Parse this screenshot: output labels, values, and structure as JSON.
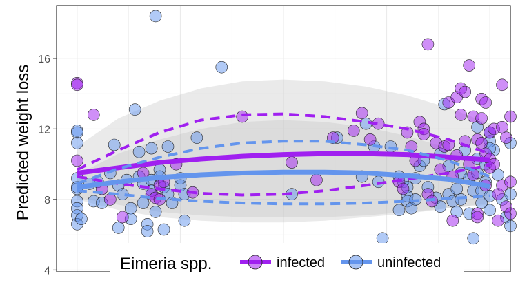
{
  "chart_data": {
    "type": "scatter",
    "title": "",
    "xlabel": "",
    "ylabel": "Predicted weight loss",
    "ylim": [
      3.9,
      19.0
    ],
    "xlim": [
      -0.05,
      1.05
    ],
    "yticks": [
      4,
      8,
      12,
      16
    ],
    "grid": true,
    "legend": {
      "title": "Eimeria spp.",
      "position": "bottom-inside",
      "entries": [
        "infected",
        "uninfected"
      ]
    },
    "colors": {
      "infected": "#a020f0",
      "uninfected": "#6495ed",
      "band": "#bebebe",
      "grid": "#ebebeb",
      "panel_border": "#333333"
    },
    "series": [
      {
        "name": "infected",
        "fit": {
          "x": [
            0,
            0.1,
            0.2,
            0.3,
            0.4,
            0.5,
            0.6,
            0.7,
            0.8,
            0.9,
            1.0
          ],
          "y": [
            9.5,
            9.8,
            10.1,
            10.3,
            10.45,
            10.55,
            10.6,
            10.6,
            10.55,
            10.4,
            10.25
          ]
        },
        "ci_upper": {
          "x": [
            0,
            0.1,
            0.2,
            0.3,
            0.4,
            0.5,
            0.6,
            0.7,
            0.8,
            0.9,
            1.0
          ],
          "y": [
            9.7,
            10.8,
            11.8,
            12.5,
            12.8,
            12.85,
            12.7,
            12.4,
            12.0,
            11.4,
            10.6
          ]
        },
        "ci_lower": {
          "x": [
            0,
            0.1,
            0.2,
            0.3,
            0.4,
            0.5,
            0.6,
            0.7,
            0.8,
            0.9,
            1.0
          ],
          "y": [
            9.3,
            8.9,
            8.6,
            8.35,
            8.25,
            8.3,
            8.5,
            8.8,
            9.15,
            9.5,
            9.95
          ]
        },
        "band_upper": [
          11.0,
          12.6,
          13.6,
          14.3,
          14.7,
          14.8,
          14.7,
          14.4,
          13.9,
          13.2,
          12.3
        ],
        "band_lower": [
          8.0,
          7.4,
          7.0,
          6.8,
          6.7,
          6.7,
          6.8,
          7.0,
          7.2,
          7.5,
          7.8
        ],
        "points": [
          {
            "x": 0.0,
            "y": 14.6
          },
          {
            "x": 0.0,
            "y": 14.5
          },
          {
            "x": 0.0,
            "y": 10.2
          },
          {
            "x": 0.04,
            "y": 12.8
          },
          {
            "x": 0.06,
            "y": 8.6
          },
          {
            "x": 0.08,
            "y": 8.0
          },
          {
            "x": 0.11,
            "y": 7.0
          },
          {
            "x": 0.16,
            "y": 9.5
          },
          {
            "x": 0.18,
            "y": 8.3
          },
          {
            "x": 0.19,
            "y": 8.1
          },
          {
            "x": 0.2,
            "y": 8.8
          },
          {
            "x": 0.21,
            "y": 9.0
          },
          {
            "x": 0.2,
            "y": 8.0
          },
          {
            "x": 0.24,
            "y": 10.0
          },
          {
            "x": 0.28,
            "y": 8.4
          },
          {
            "x": 0.4,
            "y": 12.7
          },
          {
            "x": 0.52,
            "y": 10.1
          },
          {
            "x": 0.58,
            "y": 9.1
          },
          {
            "x": 0.62,
            "y": 11.5
          },
          {
            "x": 0.67,
            "y": 11.9
          },
          {
            "x": 0.69,
            "y": 12.9
          },
          {
            "x": 0.71,
            "y": 11.4
          },
          {
            "x": 0.73,
            "y": 12.3
          },
          {
            "x": 0.78,
            "y": 9.0
          },
          {
            "x": 0.79,
            "y": 8.6
          },
          {
            "x": 0.8,
            "y": 11.8
          },
          {
            "x": 0.81,
            "y": 11.0
          },
          {
            "x": 0.82,
            "y": 10.2
          },
          {
            "x": 0.83,
            "y": 12.4
          },
          {
            "x": 0.84,
            "y": 12.0
          },
          {
            "x": 0.84,
            "y": 11.7
          },
          {
            "x": 0.85,
            "y": 16.8
          },
          {
            "x": 0.85,
            "y": 8.3
          },
          {
            "x": 0.86,
            "y": 7.9
          },
          {
            "x": 0.87,
            "y": 11.2
          },
          {
            "x": 0.88,
            "y": 9.7
          },
          {
            "x": 0.89,
            "y": 11.0
          },
          {
            "x": 0.9,
            "y": 13.5
          },
          {
            "x": 0.9,
            "y": 11.1
          },
          {
            "x": 0.91,
            "y": 6.8
          },
          {
            "x": 0.91,
            "y": 9.3
          },
          {
            "x": 0.92,
            "y": 10.5
          },
          {
            "x": 0.92,
            "y": 13.8
          },
          {
            "x": 0.93,
            "y": 14.3
          },
          {
            "x": 0.93,
            "y": 12.8
          },
          {
            "x": 0.94,
            "y": 14.1
          },
          {
            "x": 0.94,
            "y": 11.3
          },
          {
            "x": 0.95,
            "y": 15.6
          },
          {
            "x": 0.95,
            "y": 10.0
          },
          {
            "x": 0.96,
            "y": 12.7
          },
          {
            "x": 0.96,
            "y": 9.4
          },
          {
            "x": 0.97,
            "y": 11.4
          },
          {
            "x": 0.97,
            "y": 7.2
          },
          {
            "x": 0.97,
            "y": 7.0
          },
          {
            "x": 0.98,
            "y": 11.2
          },
          {
            "x": 0.98,
            "y": 12.6
          },
          {
            "x": 0.98,
            "y": 13.7
          },
          {
            "x": 0.99,
            "y": 13.5
          },
          {
            "x": 0.99,
            "y": 10.6
          },
          {
            "x": 0.99,
            "y": 8.8
          },
          {
            "x": 1.0,
            "y": 11.8
          },
          {
            "x": 1.0,
            "y": 10.3
          },
          {
            "x": 1.0,
            "y": 9.8
          },
          {
            "x": 1.01,
            "y": 12.0
          },
          {
            "x": 1.01,
            "y": 10.0
          },
          {
            "x": 1.02,
            "y": 8.3
          },
          {
            "x": 1.02,
            "y": 6.8
          },
          {
            "x": 1.03,
            "y": 14.5
          },
          {
            "x": 1.03,
            "y": 12.1
          },
          {
            "x": 1.03,
            "y": 8.8
          },
          {
            "x": 1.04,
            "y": 7.6
          },
          {
            "x": 1.04,
            "y": 11.5
          },
          {
            "x": 1.05,
            "y": 12.7
          },
          {
            "x": 1.05,
            "y": 9.0
          },
          {
            "x": 1.05,
            "y": 7.2
          }
        ]
      },
      {
        "name": "uninfected",
        "fit": {
          "x": [
            0,
            0.1,
            0.2,
            0.3,
            0.4,
            0.5,
            0.6,
            0.7,
            0.8,
            0.9,
            1.0
          ],
          "y": [
            8.7,
            9.0,
            9.25,
            9.4,
            9.5,
            9.55,
            9.55,
            9.5,
            9.35,
            9.15,
            8.75
          ]
        },
        "ci_upper": {
          "x": [
            0,
            0.1,
            0.2,
            0.3,
            0.4,
            0.5,
            0.6,
            0.7,
            0.8,
            0.9,
            1.0
          ],
          "y": [
            8.9,
            9.75,
            10.4,
            10.9,
            11.2,
            11.3,
            11.3,
            11.1,
            10.8,
            10.2,
            9.3
          ]
        },
        "ci_lower": {
          "x": [
            0,
            0.1,
            0.2,
            0.3,
            0.4,
            0.5,
            0.6,
            0.7,
            0.8,
            0.9,
            1.0
          ],
          "y": [
            8.5,
            8.3,
            8.05,
            7.9,
            7.8,
            7.75,
            7.75,
            7.8,
            7.9,
            8.05,
            8.2
          ]
        },
        "band_upper": [
          9.4,
          10.6,
          11.4,
          12.0,
          12.4,
          12.5,
          12.4,
          12.1,
          11.6,
          10.9,
          10.0
        ],
        "band_lower": [
          8.1,
          7.7,
          7.3,
          7.1,
          7.0,
          7.0,
          7.0,
          7.1,
          7.3,
          7.5,
          7.7
        ],
        "points": [
          {
            "x": 0.0,
            "y": 11.9
          },
          {
            "x": 0.0,
            "y": 11.8
          },
          {
            "x": 0.0,
            "y": 11.2
          },
          {
            "x": 0.0,
            "y": 8.6
          },
          {
            "x": 0.0,
            "y": 7.9
          },
          {
            "x": 0.0,
            "y": 7.5
          },
          {
            "x": 0.0,
            "y": 7.1
          },
          {
            "x": 0.0,
            "y": 6.6
          },
          {
            "x": 0.0,
            "y": 8.7
          },
          {
            "x": 0.0,
            "y": 9.2
          },
          {
            "x": 0.01,
            "y": 6.9
          },
          {
            "x": 0.03,
            "y": 8.9
          },
          {
            "x": 0.04,
            "y": 7.9
          },
          {
            "x": 0.05,
            "y": 9.0
          },
          {
            "x": 0.06,
            "y": 7.8
          },
          {
            "x": 0.08,
            "y": 9.5
          },
          {
            "x": 0.09,
            "y": 11.1
          },
          {
            "x": 0.1,
            "y": 8.8
          },
          {
            "x": 0.1,
            "y": 6.4
          },
          {
            "x": 0.11,
            "y": 8.3
          },
          {
            "x": 0.12,
            "y": 9.1
          },
          {
            "x": 0.13,
            "y": 7.5
          },
          {
            "x": 0.13,
            "y": 6.9
          },
          {
            "x": 0.14,
            "y": 13.1
          },
          {
            "x": 0.15,
            "y": 10.7
          },
          {
            "x": 0.15,
            "y": 9.3
          },
          {
            "x": 0.16,
            "y": 7.8
          },
          {
            "x": 0.16,
            "y": 8.9
          },
          {
            "x": 0.17,
            "y": 6.6
          },
          {
            "x": 0.17,
            "y": 6.2
          },
          {
            "x": 0.18,
            "y": 10.9
          },
          {
            "x": 0.18,
            "y": 9.1
          },
          {
            "x": 0.18,
            "y": 8.5
          },
          {
            "x": 0.19,
            "y": 7.3
          },
          {
            "x": 0.19,
            "y": 18.4
          },
          {
            "x": 0.2,
            "y": 9.7
          },
          {
            "x": 0.2,
            "y": 9.3
          },
          {
            "x": 0.21,
            "y": 8.7
          },
          {
            "x": 0.21,
            "y": 6.3
          },
          {
            "x": 0.22,
            "y": 8.3
          },
          {
            "x": 0.22,
            "y": 11.0
          },
          {
            "x": 0.23,
            "y": 7.8
          },
          {
            "x": 0.25,
            "y": 8.8
          },
          {
            "x": 0.25,
            "y": 9.2
          },
          {
            "x": 0.26,
            "y": 6.8
          },
          {
            "x": 0.26,
            "y": 8.3
          },
          {
            "x": 0.29,
            "y": 11.5
          },
          {
            "x": 0.35,
            "y": 15.5
          },
          {
            "x": 0.52,
            "y": 8.3
          },
          {
            "x": 0.63,
            "y": 11.5
          },
          {
            "x": 0.69,
            "y": 9.3
          },
          {
            "x": 0.7,
            "y": 12.3
          },
          {
            "x": 0.72,
            "y": 11.0
          },
          {
            "x": 0.73,
            "y": 9.0
          },
          {
            "x": 0.74,
            "y": 5.8
          },
          {
            "x": 0.76,
            "y": 11.0
          },
          {
            "x": 0.78,
            "y": 9.3
          },
          {
            "x": 0.78,
            "y": 7.4
          },
          {
            "x": 0.79,
            "y": 9.0
          },
          {
            "x": 0.8,
            "y": 8.2
          },
          {
            "x": 0.8,
            "y": 8.7
          },
          {
            "x": 0.8,
            "y": 7.9
          },
          {
            "x": 0.81,
            "y": 7.5
          },
          {
            "x": 0.82,
            "y": 9.2
          },
          {
            "x": 0.82,
            "y": 8.0
          },
          {
            "x": 0.83,
            "y": 9.9
          },
          {
            "x": 0.84,
            "y": 10.2
          },
          {
            "x": 0.85,
            "y": 8.7
          },
          {
            "x": 0.87,
            "y": 8.1
          },
          {
            "x": 0.88,
            "y": 10.6
          },
          {
            "x": 0.88,
            "y": 7.6
          },
          {
            "x": 0.89,
            "y": 13.4
          },
          {
            "x": 0.9,
            "y": 9.9
          },
          {
            "x": 0.9,
            "y": 8.3
          },
          {
            "x": 0.91,
            "y": 7.9
          },
          {
            "x": 0.92,
            "y": 8.6
          },
          {
            "x": 0.92,
            "y": 7.3
          },
          {
            "x": 0.93,
            "y": 9.5
          },
          {
            "x": 0.93,
            "y": 8.0
          },
          {
            "x": 0.94,
            "y": 10.8
          },
          {
            "x": 0.95,
            "y": 9.2
          },
          {
            "x": 0.95,
            "y": 7.2
          },
          {
            "x": 0.96,
            "y": 5.8
          },
          {
            "x": 0.96,
            "y": 8.5
          },
          {
            "x": 0.97,
            "y": 12.1
          },
          {
            "x": 0.97,
            "y": 10.3
          },
          {
            "x": 0.97,
            "y": 9.5
          },
          {
            "x": 0.98,
            "y": 7.8
          },
          {
            "x": 0.98,
            "y": 8.5
          },
          {
            "x": 0.99,
            "y": 9.0
          },
          {
            "x": 0.99,
            "y": 10.0
          },
          {
            "x": 1.0,
            "y": 11.8
          },
          {
            "x": 1.0,
            "y": 8.2
          },
          {
            "x": 1.0,
            "y": 7.4
          },
          {
            "x": 1.01,
            "y": 10.8
          },
          {
            "x": 1.02,
            "y": 9.4
          },
          {
            "x": 1.03,
            "y": 8.0
          },
          {
            "x": 1.04,
            "y": 7.0
          },
          {
            "x": 1.05,
            "y": 8.3
          },
          {
            "x": 1.05,
            "y": 6.5
          },
          {
            "x": 1.0,
            "y": 11.3
          },
          {
            "x": 1.05,
            "y": 11.2
          },
          {
            "x": 1.0,
            "y": 10.9
          }
        ]
      }
    ]
  }
}
